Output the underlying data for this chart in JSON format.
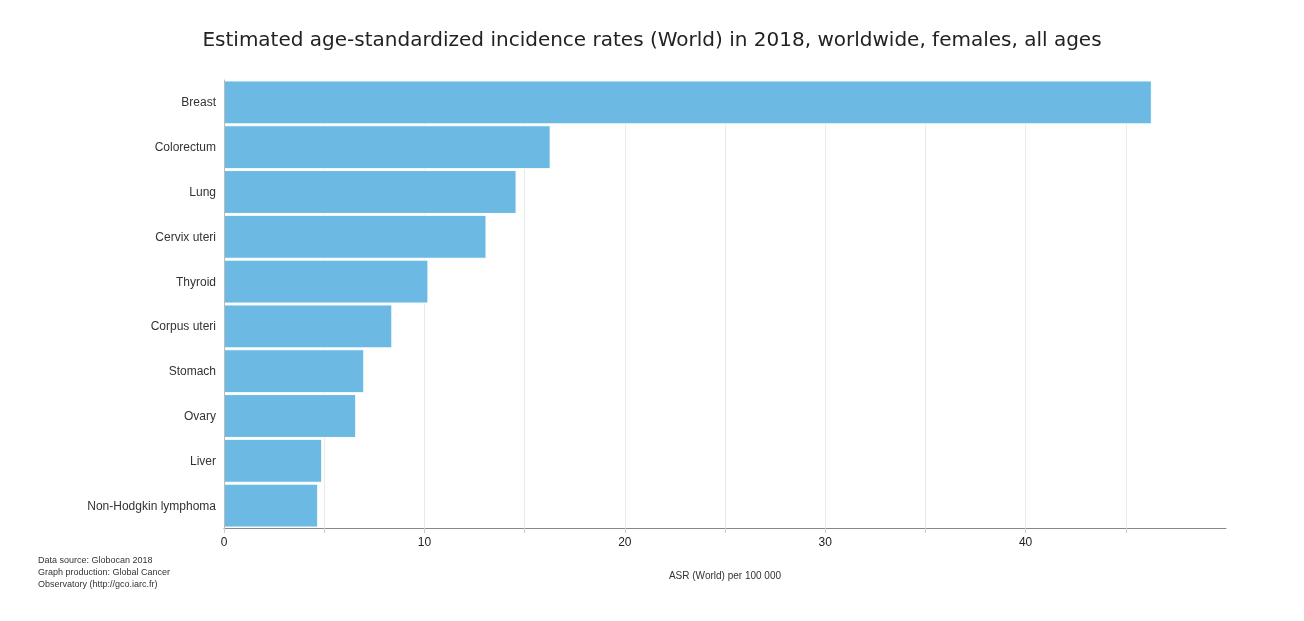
{
  "chart_data": {
    "type": "bar",
    "orientation": "horizontal",
    "title": "Estimated age-standardized incidence rates (World) in 2018, worldwide, females, all ages",
    "xlabel": "ASR (World) per 100 000",
    "categories": [
      "Breast",
      "Colorectum",
      "Lung",
      "Cervix uteri",
      "Thyroid",
      "Corpus uteri",
      "Stomach",
      "Ovary",
      "Liver",
      "Non-Hodgkin lymphoma"
    ],
    "values": [
      46.3,
      16.3,
      14.6,
      13.1,
      10.2,
      8.4,
      7.0,
      6.6,
      4.9,
      4.7
    ],
    "color": "#6cb9e4",
    "xlim": [
      0,
      50
    ],
    "xticks": [
      0,
      {
        "value": 5,
        "label": null
      },
      10,
      {
        "value": 15,
        "label": null
      },
      20,
      {
        "value": 25,
        "label": null
      },
      30,
      {
        "value": 35,
        "label": null
      },
      40,
      {
        "value": 45,
        "label": null
      }
    ],
    "grid": true,
    "annotations": [
      "Data source: Globocan 2018\nGraph production: Global Cancer\nObservatory (http://gco.iarc.fr)"
    ]
  }
}
